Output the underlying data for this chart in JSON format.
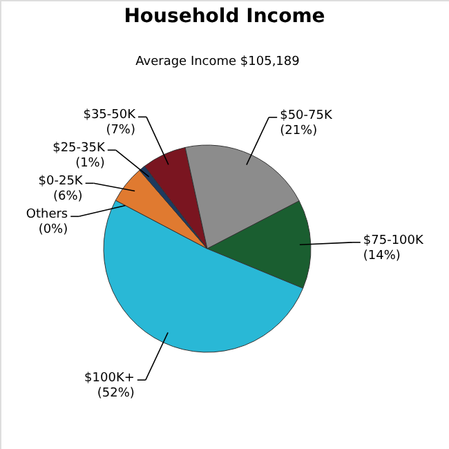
{
  "chart_data": {
    "type": "pie",
    "title": "Household Income",
    "subtitle": "Average Income  $105,189",
    "categories": [
      "$35-50K",
      "$50-75K",
      "$75-100K",
      "$100K+",
      "Others",
      "$0-25K",
      "$25-35K"
    ],
    "values": [
      7,
      21,
      14,
      52,
      0,
      6,
      1
    ],
    "value_labels": [
      "(7%)",
      "(21%)",
      "(14%)",
      "(52%)",
      "(0%)",
      "(6%)",
      "(1%)"
    ],
    "colors": [
      "#7a1520",
      "#8c8c8c",
      "#1a5e30",
      "#29b8d6",
      "#c0c0c0",
      "#e07a30",
      "#1e3a5f"
    ]
  }
}
